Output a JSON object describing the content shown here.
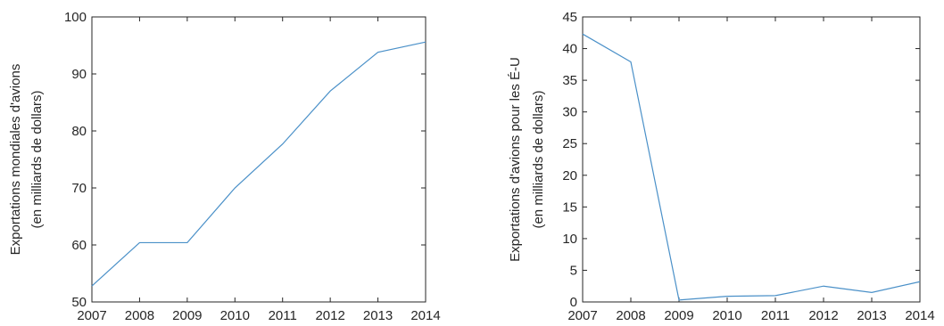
{
  "chart_data": [
    {
      "type": "line",
      "title": "",
      "xlabel": "",
      "ylabel_lines": [
        "Exportations mondiales d'avions",
        "(en milliards de dollars)"
      ],
      "x": [
        2007,
        2008,
        2009,
        2010,
        2011,
        2012,
        2013,
        2014
      ],
      "xticks": [
        "2007",
        "2008",
        "2009",
        "2010",
        "2011",
        "2012",
        "2013",
        "2014"
      ],
      "xlim": [
        2007,
        2014
      ],
      "ylim": [
        50,
        100
      ],
      "yticks": [
        "50",
        "60",
        "70",
        "80",
        "90",
        "100"
      ],
      "ytick_values": [
        50,
        60,
        70,
        80,
        90,
        100
      ],
      "series": [
        {
          "values": [
            52.8,
            60.4,
            60.4,
            70.0,
            77.7,
            87.0,
            93.8,
            95.6
          ],
          "color": "#4a90c8"
        }
      ],
      "grid": false,
      "box": "left-bottom-top-right"
    },
    {
      "type": "line",
      "title": "",
      "xlabel": "",
      "ylabel_lines": [
        "Exportations d'avions pour les É-U",
        "(en milliards de dollars)"
      ],
      "x": [
        2007,
        2008,
        2009,
        2010,
        2011,
        2012,
        2013,
        2014
      ],
      "xticks": [
        "2007",
        "2008",
        "2009",
        "2010",
        "2011",
        "2012",
        "2013",
        "2014"
      ],
      "xlim": [
        2007,
        2014
      ],
      "ylim": [
        0,
        45
      ],
      "yticks": [
        "0",
        "5",
        "10",
        "15",
        "20",
        "25",
        "30",
        "35",
        "40",
        "45"
      ],
      "ytick_values": [
        0,
        5,
        10,
        15,
        20,
        25,
        30,
        35,
        40,
        45
      ],
      "series": [
        {
          "values": [
            42.3,
            37.9,
            0.3,
            0.9,
            1.0,
            2.5,
            1.5,
            3.2
          ],
          "color": "#4a90c8"
        }
      ],
      "grid": false,
      "box": "left-bottom-top-right"
    }
  ]
}
